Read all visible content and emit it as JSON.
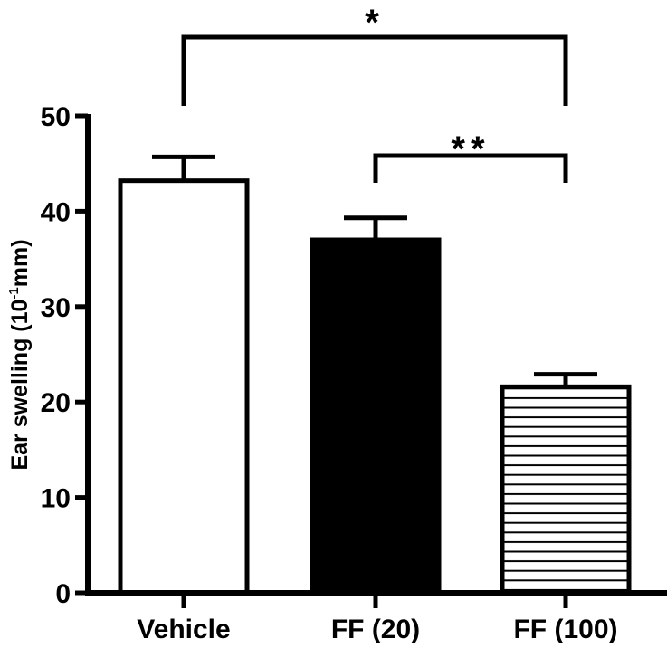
{
  "chart_data": {
    "type": "bar",
    "ylabel_main": "Ear swelling (10",
    "ylabel_sup": "-1",
    "ylabel_tail": "mm)",
    "xlabel": "",
    "ylim": [
      0,
      50
    ],
    "yticks": [
      0,
      10,
      20,
      30,
      40,
      50
    ],
    "categories": [
      "Vehicle",
      "FF (20)",
      "FF (100)"
    ],
    "values": [
      43.2,
      37.0,
      21.6
    ],
    "errors": [
      2.5,
      2.3,
      1.3
    ],
    "fills": [
      "white",
      "black",
      "horizontal-stripes"
    ],
    "significance": [
      {
        "from": 0,
        "to": 2,
        "label": "*"
      },
      {
        "from": 1,
        "to": 2,
        "label": "**"
      }
    ],
    "colors": {
      "bar_stroke": "#000000",
      "solid_fill": "#000000",
      "open_fill": "#ffffff"
    }
  }
}
